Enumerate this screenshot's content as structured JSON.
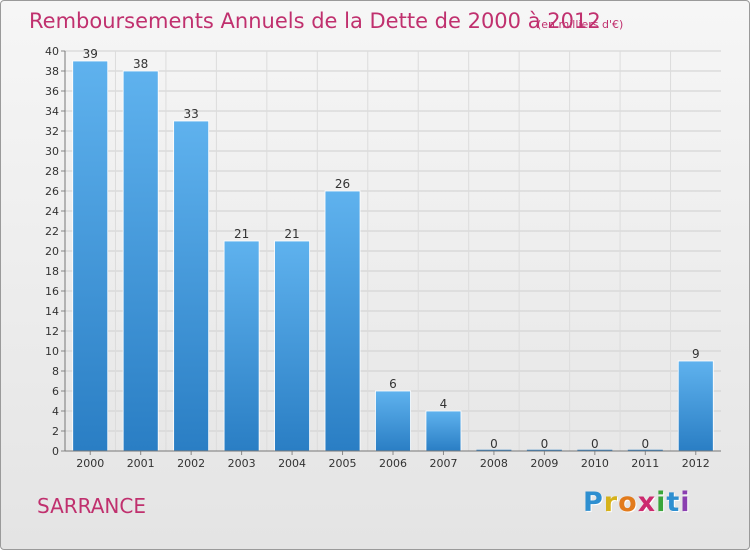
{
  "title": "Remboursements Annuels de la Dette de 2000 à 2012",
  "subtitle": "(en milliers d'€)",
  "commune": "SARRANCE",
  "logo": {
    "letters": [
      "P",
      "r",
      "o",
      "x",
      "i",
      "t",
      "i"
    ],
    "colors": [
      "#2e8fd0",
      "#d6b21a",
      "#e27b1c",
      "#cc2a6e",
      "#3aa63a",
      "#2e8fd0",
      "#8a3fb0"
    ]
  },
  "colors": {
    "bar_top": "#5fb2ee",
    "bar_bottom": "#2a7ec4",
    "title": "#c0306e"
  },
  "chart_data": {
    "type": "bar",
    "categories": [
      "2000",
      "2001",
      "2002",
      "2003",
      "2004",
      "2005",
      "2006",
      "2007",
      "2008",
      "2009",
      "2010",
      "2011",
      "2012"
    ],
    "values": [
      39,
      38,
      33,
      21,
      21,
      26,
      6,
      4,
      0,
      0,
      0,
      0,
      9
    ],
    "ylim": [
      0,
      40
    ],
    "yticks": [
      0,
      2,
      4,
      6,
      8,
      10,
      12,
      14,
      16,
      18,
      20,
      22,
      24,
      26,
      28,
      30,
      32,
      34,
      36,
      38,
      40
    ],
    "grid": true,
    "data_labels": true
  }
}
